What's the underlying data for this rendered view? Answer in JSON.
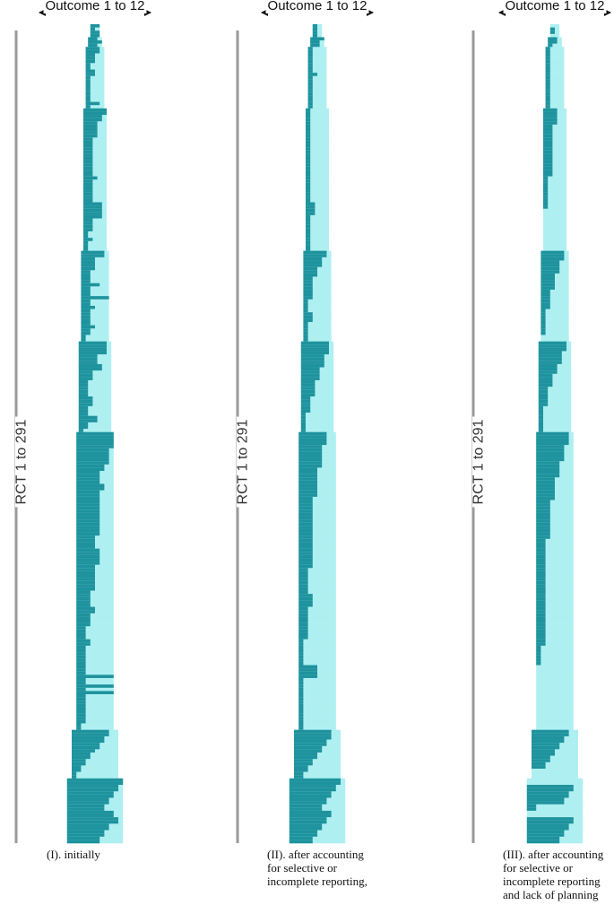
{
  "figure": {
    "x_label": "Outcome 1 to 12",
    "y_label": "RCT 1 to 291",
    "colors": {
      "reported": "#1f939d",
      "possible": "#aef0f2",
      "axis": "#9a9a9a",
      "arrow": "#111111"
    }
  },
  "chart_data": [
    {
      "type": "heatmap",
      "caption": [
        "(I). initially"
      ],
      "x_range": [
        1,
        12
      ],
      "y_range": [
        1,
        291
      ],
      "groups": [
        {
          "outcomes": 2,
          "trials": 4,
          "reported": [
            2,
            1,
            2,
            2
          ]
        },
        {
          "outcomes": 3,
          "trials": 3,
          "reported": [
            2,
            3,
            2
          ]
        },
        {
          "outcomes": 4,
          "trials": 19,
          "reported": [
            3,
            3,
            2,
            2,
            2,
            1,
            1,
            2,
            2,
            1,
            1,
            1,
            1,
            1,
            1,
            1,
            1,
            3,
            1
          ]
        },
        {
          "outcomes": 5,
          "trials": 44,
          "reported": [
            5,
            5,
            4,
            4,
            3,
            3,
            3,
            3,
            3,
            2,
            2,
            2,
            2,
            2,
            2,
            2,
            2,
            2,
            2,
            2,
            2,
            3,
            2,
            2,
            2,
            2,
            2,
            2,
            2,
            4,
            4,
            4,
            4,
            4,
            2,
            2,
            2,
            2,
            1,
            1,
            2,
            1,
            1,
            1
          ]
        },
        {
          "outcomes": 6,
          "trials": 28,
          "reported": [
            5,
            5,
            3,
            3,
            3,
            3,
            2,
            2,
            2,
            2,
            4,
            2,
            2,
            2,
            6,
            2,
            2,
            3,
            2,
            2,
            2,
            2,
            2,
            3,
            2,
            2,
            1,
            1
          ]
        },
        {
          "outcomes": 7,
          "trials": 28,
          "reported": [
            6,
            6,
            6,
            6,
            4,
            4,
            4,
            5,
            5,
            3,
            3,
            3,
            2,
            2,
            2,
            2,
            2,
            3,
            3,
            3,
            2,
            2,
            2,
            4,
            4,
            2,
            2,
            1
          ]
        },
        {
          "outcomes": 8,
          "trials": 92,
          "reported": [
            8,
            8,
            8,
            8,
            8,
            7,
            7,
            7,
            7,
            7,
            6,
            6,
            5,
            5,
            5,
            5,
            6,
            6,
            5,
            5,
            5,
            5,
            5,
            5,
            5,
            5,
            5,
            5,
            5,
            5,
            5,
            5,
            4,
            4,
            4,
            4,
            5,
            5,
            5,
            5,
            5,
            4,
            4,
            4,
            4,
            4,
            4,
            4,
            4,
            3,
            3,
            3,
            3,
            3,
            4,
            4,
            3,
            3,
            3,
            3,
            2,
            2,
            2,
            2,
            3,
            3,
            2,
            2,
            2,
            2,
            2,
            2,
            2,
            2,
            2,
            9,
            2,
            2,
            9,
            2,
            10,
            2,
            2,
            2,
            2,
            2,
            2,
            2,
            2,
            2,
            1,
            1
          ]
        },
        {
          "outcomes": 10,
          "trials": 15,
          "reported": [
            8,
            8,
            7,
            7,
            6,
            6,
            5,
            4,
            4,
            3,
            3,
            2,
            2,
            1,
            1
          ]
        },
        {
          "outcomes": 12,
          "trials": 20,
          "reported": [
            12,
            12,
            11,
            11,
            10,
            10,
            9,
            9,
            8,
            8,
            10,
            10,
            11,
            11,
            9,
            9,
            8,
            8,
            7,
            7
          ]
        }
      ]
    },
    {
      "type": "heatmap",
      "caption": [
        "(II). after accounting",
        "for selective or",
        "incomplete reporting,"
      ],
      "x_range": [
        1,
        12
      ],
      "y_range": [
        1,
        291
      ],
      "groups": [
        {
          "outcomes": 2,
          "trials": 4,
          "reported": [
            1,
            1,
            1,
            1
          ]
        },
        {
          "outcomes": 3,
          "trials": 3,
          "reported": [
            3,
            2,
            2
          ]
        },
        {
          "outcomes": 4,
          "trials": 19,
          "reported": [
            1,
            1,
            1,
            1,
            1,
            1,
            1,
            1,
            2,
            1,
            1,
            1,
            1,
            1,
            1,
            1,
            1,
            1,
            1
          ]
        },
        {
          "outcomes": 5,
          "trials": 44,
          "reported": [
            1,
            1,
            1,
            1,
            1,
            1,
            1,
            1,
            1,
            1,
            1,
            1,
            1,
            1,
            1,
            1,
            1,
            1,
            1,
            1,
            1,
            1,
            1,
            1,
            1,
            1,
            1,
            1,
            1,
            2,
            2,
            2,
            2,
            1,
            1,
            1,
            1,
            1,
            1,
            1,
            1,
            1,
            1,
            1
          ]
        },
        {
          "outcomes": 6,
          "trials": 28,
          "reported": [
            5,
            5,
            4,
            4,
            4,
            3,
            3,
            3,
            2,
            2,
            2,
            2,
            2,
            2,
            2,
            1,
            1,
            1,
            1,
            2,
            2,
            2,
            1,
            1,
            1,
            1,
            1,
            1
          ]
        },
        {
          "outcomes": 7,
          "trials": 28,
          "reported": [
            6,
            6,
            6,
            6,
            5,
            5,
            5,
            5,
            4,
            4,
            4,
            4,
            3,
            3,
            3,
            3,
            3,
            2,
            2,
            2,
            2,
            2,
            1,
            1,
            1,
            1,
            1,
            1
          ]
        },
        {
          "outcomes": 8,
          "trials": 92,
          "reported": [
            6,
            6,
            6,
            6,
            5,
            5,
            5,
            5,
            5,
            5,
            5,
            4,
            4,
            4,
            4,
            4,
            4,
            4,
            4,
            4,
            3,
            3,
            3,
            3,
            3,
            3,
            3,
            3,
            3,
            3,
            3,
            3,
            3,
            3,
            3,
            3,
            3,
            3,
            3,
            3,
            3,
            3,
            2,
            2,
            2,
            2,
            2,
            2,
            2,
            2,
            3,
            3,
            3,
            3,
            2,
            2,
            2,
            2,
            2,
            2,
            2,
            2,
            2,
            2,
            1,
            1,
            1,
            1,
            1,
            1,
            1,
            1,
            4,
            4,
            4,
            4,
            1,
            1,
            1,
            1,
            1,
            1,
            1,
            1,
            1,
            1,
            1,
            1,
            1,
            1,
            1,
            1
          ]
        },
        {
          "outcomes": 10,
          "trials": 15,
          "reported": [
            8,
            8,
            8,
            7,
            7,
            6,
            6,
            5,
            5,
            4,
            4,
            3,
            3,
            2,
            2
          ]
        },
        {
          "outcomes": 12,
          "trials": 20,
          "reported": [
            11,
            11,
            10,
            10,
            9,
            9,
            8,
            8,
            7,
            7,
            9,
            9,
            8,
            8,
            7,
            7,
            6,
            6,
            5,
            5
          ]
        }
      ]
    },
    {
      "type": "heatmap",
      "caption": [
        "(III). after accounting",
        "for selective or",
        "incomplete reporting",
        "and lack of planning"
      ],
      "x_range": [
        1,
        12
      ],
      "y_range": [
        1,
        291
      ],
      "groups": [
        {
          "outcomes": 2,
          "trials": 4,
          "reported": [
            0,
            1,
            1,
            0
          ]
        },
        {
          "outcomes": 3,
          "trials": 3,
          "reported": [
            2,
            2,
            1
          ]
        },
        {
          "outcomes": 4,
          "trials": 19,
          "reported": [
            1,
            1,
            1,
            1,
            1,
            1,
            1,
            1,
            1,
            1,
            1,
            1,
            1,
            1,
            1,
            1,
            1,
            1,
            1
          ]
        },
        {
          "outcomes": 5,
          "trials": 44,
          "reported": [
            3,
            3,
            3,
            3,
            3,
            2,
            2,
            2,
            2,
            2,
            2,
            2,
            2,
            2,
            2,
            2,
            2,
            2,
            2,
            2,
            2,
            1,
            1,
            1,
            1,
            1,
            1,
            1,
            1,
            1,
            1,
            0,
            0,
            0,
            0,
            0,
            0,
            0,
            0,
            0,
            0,
            0,
            0,
            0
          ]
        },
        {
          "outcomes": 6,
          "trials": 28,
          "reported": [
            5,
            5,
            5,
            4,
            4,
            4,
            4,
            3,
            3,
            3,
            3,
            3,
            2,
            2,
            2,
            2,
            2,
            2,
            1,
            1,
            1,
            1,
            1,
            1,
            1,
            1,
            0,
            0
          ]
        },
        {
          "outcomes": 7,
          "trials": 28,
          "reported": [
            6,
            6,
            6,
            5,
            5,
            5,
            5,
            4,
            4,
            4,
            3,
            3,
            3,
            3,
            2,
            2,
            2,
            2,
            2,
            2,
            1,
            1,
            1,
            1,
            1,
            1,
            1,
            1
          ]
        },
        {
          "outcomes": 8,
          "trials": 92,
          "reported": [
            7,
            7,
            7,
            7,
            6,
            6,
            6,
            6,
            6,
            5,
            5,
            5,
            5,
            5,
            4,
            4,
            4,
            4,
            4,
            4,
            4,
            3,
            3,
            3,
            3,
            3,
            3,
            3,
            3,
            3,
            3,
            3,
            3,
            2,
            2,
            2,
            2,
            2,
            2,
            2,
            2,
            2,
            2,
            2,
            2,
            2,
            2,
            2,
            2,
            2,
            2,
            2,
            2,
            2,
            2,
            2,
            2,
            2,
            2,
            2,
            2,
            2,
            2,
            2,
            2,
            2,
            1,
            1,
            1,
            1,
            1,
            1,
            0,
            0,
            0,
            0,
            0,
            0,
            0,
            0,
            0,
            0,
            0,
            0,
            0,
            0,
            0,
            0,
            0,
            0,
            0,
            0
          ]
        },
        {
          "outcomes": 10,
          "trials": 15,
          "reported": [
            8,
            8,
            7,
            7,
            6,
            6,
            5,
            5,
            4,
            4,
            3,
            3,
            0,
            0,
            0
          ]
        },
        {
          "outcomes": 12,
          "trials": 20,
          "reported": [
            0,
            0,
            10,
            10,
            9,
            9,
            8,
            8,
            2,
            2,
            0,
            0,
            10,
            10,
            9,
            9,
            8,
            8,
            7,
            7
          ]
        }
      ]
    }
  ]
}
